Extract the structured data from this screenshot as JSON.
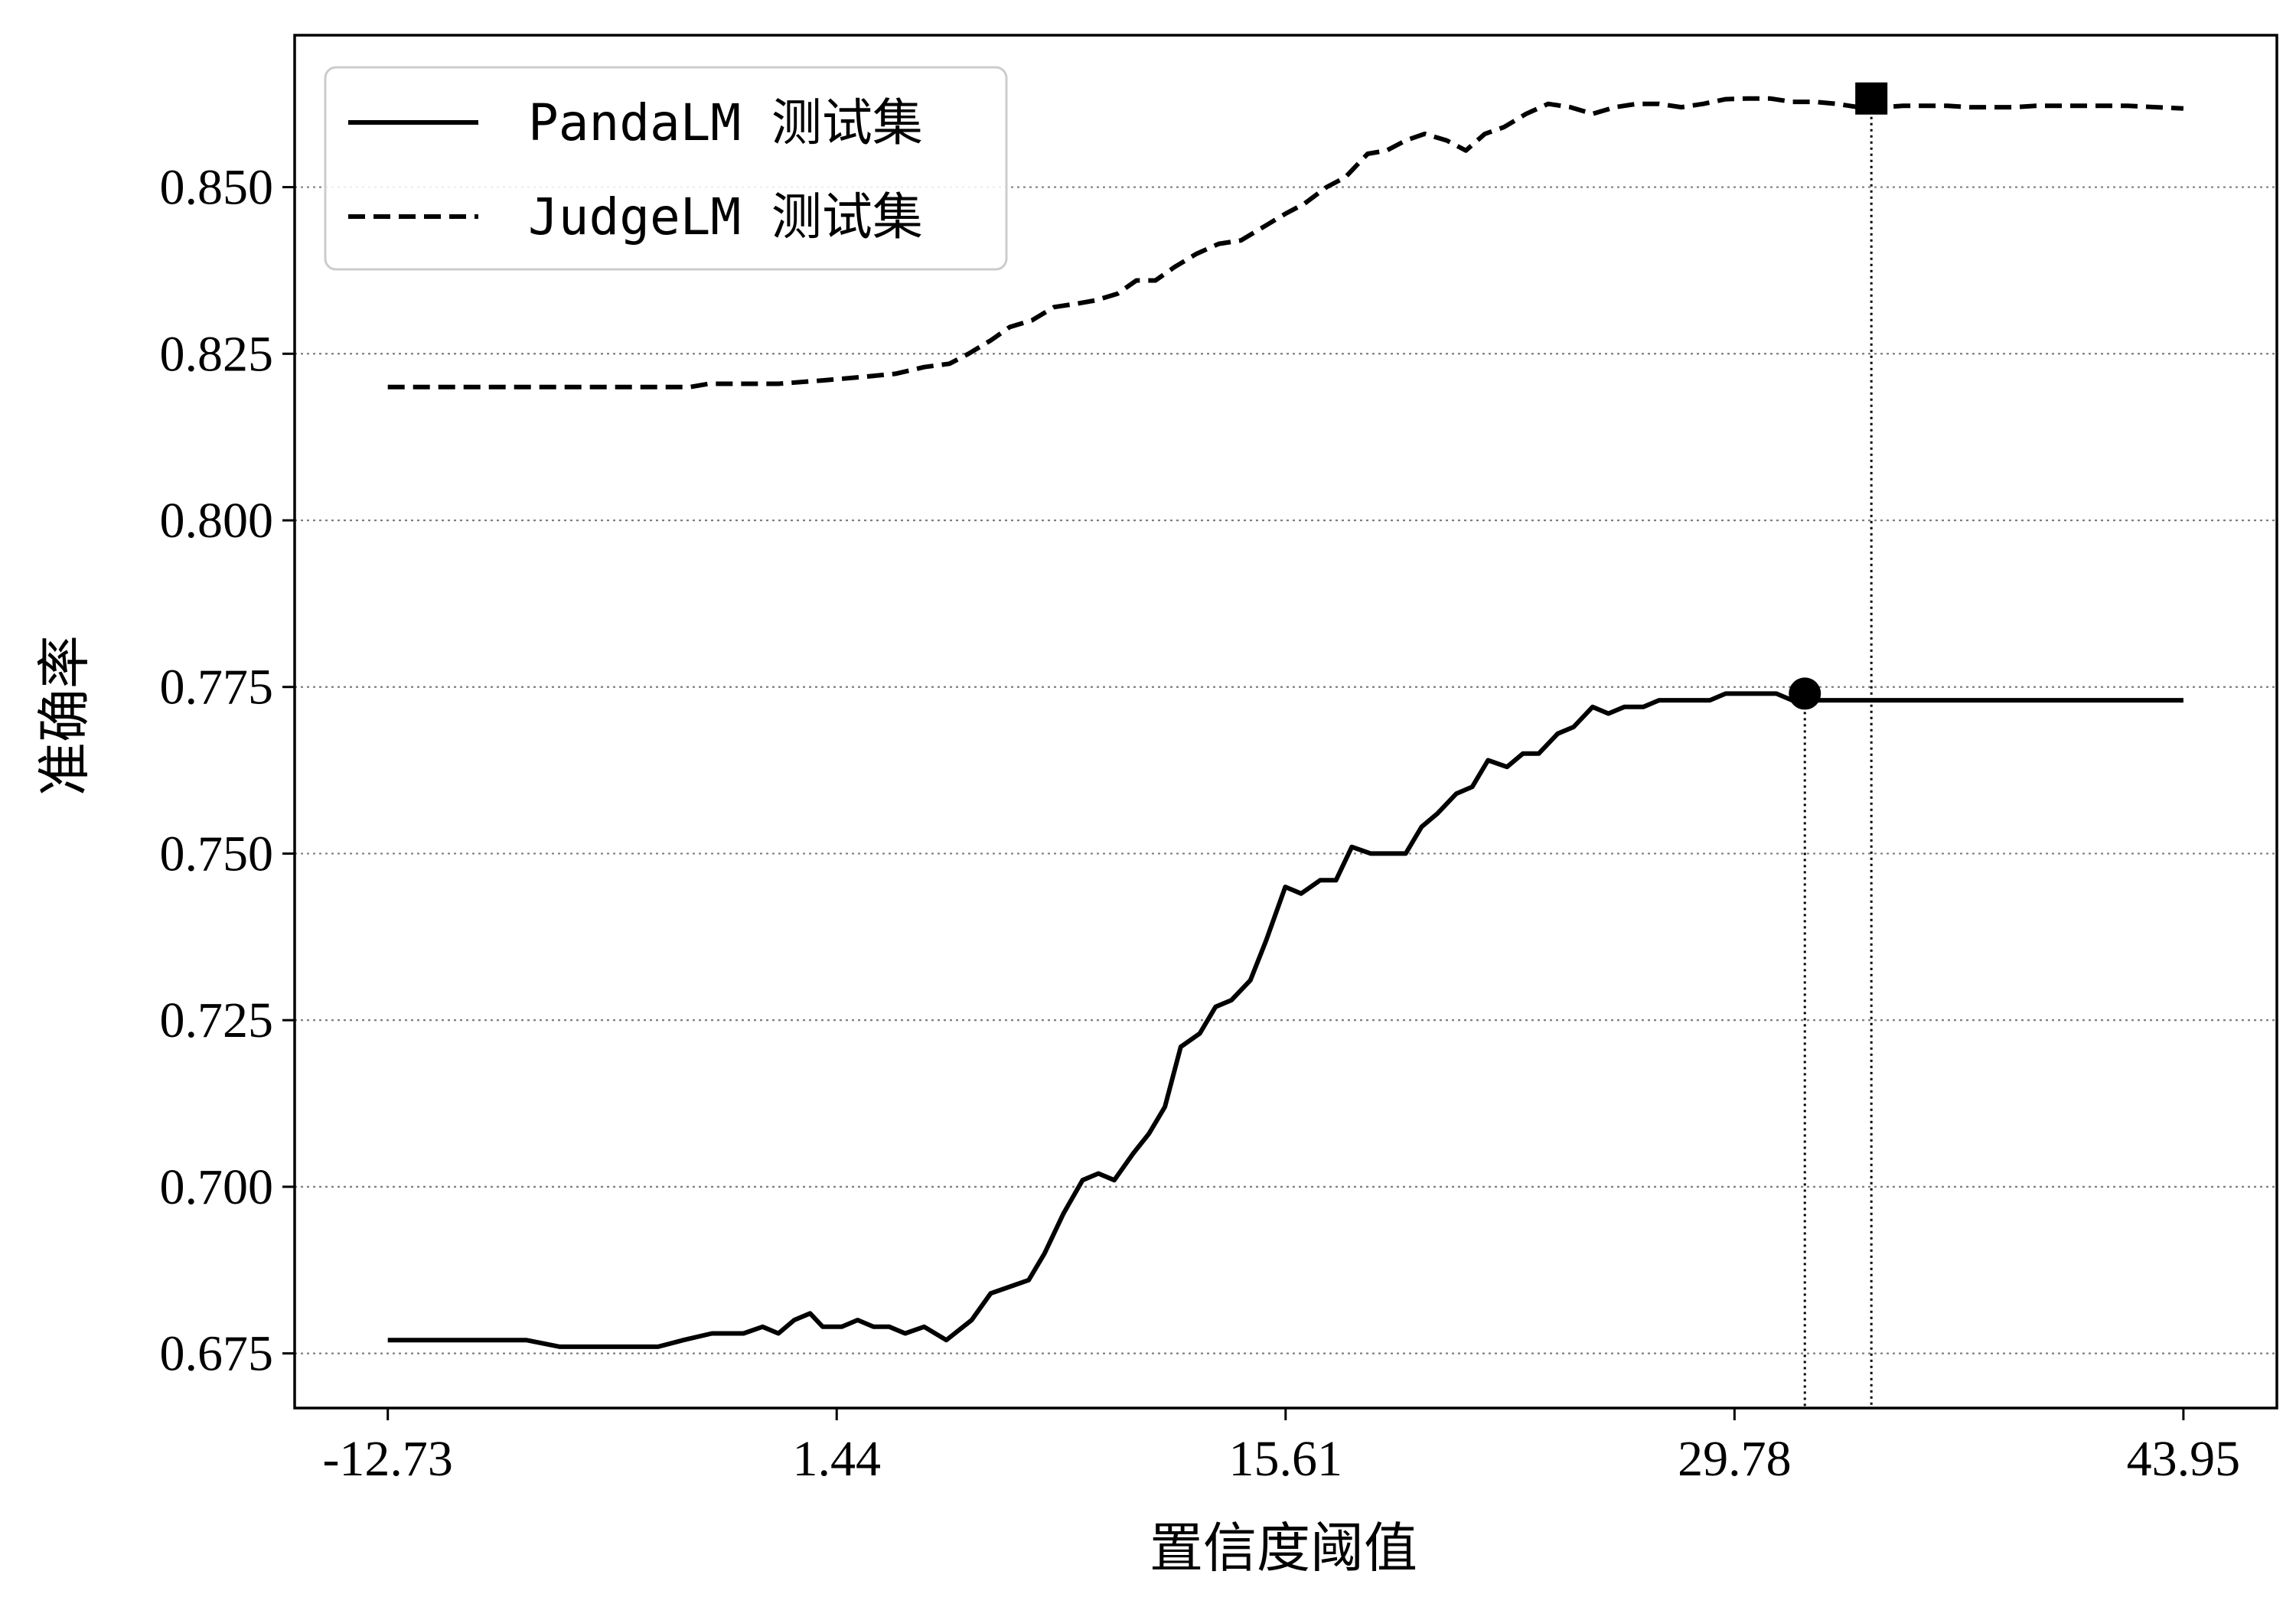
{
  "chart_data": {
    "type": "line",
    "xlabel": "置信度阈值",
    "ylabel": "准确率",
    "xlim": [
      -15.67,
      46.9
    ],
    "ylim": [
      0.6668,
      0.8728
    ],
    "xticks": [
      -12.73,
      1.44,
      15.61,
      29.78,
      43.95
    ],
    "xtick_labels": [
      "-12.73",
      "1.44",
      "15.61",
      "29.78",
      "43.95"
    ],
    "yticks": [
      0.675,
      0.7,
      0.725,
      0.75,
      0.775,
      0.8,
      0.825,
      0.85
    ],
    "ytick_labels": [
      "0.675",
      "0.700",
      "0.725",
      "0.750",
      "0.775",
      "0.800",
      "0.825",
      "0.850"
    ],
    "grid": "horizontal-dotted",
    "legend": "top-left",
    "series": [
      {
        "name": "PandaLM 测试集",
        "style": "solid",
        "color": "#000000",
        "marker_point": {
          "x": 32.0,
          "y": 0.774,
          "marker": "circle"
        },
        "x": [
          -12.73,
          -8.36,
          -7.3,
          -4.2,
          -3.4,
          -2.5,
          -1.5,
          -0.9,
          -0.4,
          0.1,
          0.6,
          1.0,
          1.6,
          2.1,
          2.6,
          3.1,
          3.6,
          4.2,
          4.9,
          5.7,
          6.3,
          6.9,
          7.5,
          8.0,
          8.6,
          9.2,
          9.7,
          10.2,
          10.8,
          11.3,
          11.8,
          12.3,
          12.9,
          13.4,
          13.9,
          14.5,
          15.0,
          15.6,
          16.1,
          16.7,
          17.2,
          17.7,
          18.3,
          18.8,
          19.4,
          19.9,
          20.4,
          21.0,
          21.5,
          22.0,
          22.6,
          23.1,
          23.6,
          24.2,
          24.7,
          25.3,
          25.8,
          26.3,
          26.9,
          27.4,
          27.9,
          28.5,
          29.0,
          29.5,
          30.0,
          30.6,
          31.1,
          31.6,
          32.2,
          32.7,
          33.3,
          33.8,
          43.95
        ],
        "y": [
          0.677,
          0.677,
          0.676,
          0.676,
          0.677,
          0.678,
          0.678,
          0.679,
          0.678,
          0.68,
          0.681,
          0.679,
          0.679,
          0.68,
          0.679,
          0.679,
          0.678,
          0.679,
          0.677,
          0.68,
          0.684,
          0.685,
          0.686,
          0.69,
          0.696,
          0.701,
          0.702,
          0.701,
          0.705,
          0.708,
          0.712,
          0.721,
          0.723,
          0.727,
          0.728,
          0.731,
          0.737,
          0.745,
          0.744,
          0.746,
          0.746,
          0.751,
          0.75,
          0.75,
          0.75,
          0.754,
          0.756,
          0.759,
          0.76,
          0.764,
          0.763,
          0.765,
          0.765,
          0.768,
          0.769,
          0.772,
          0.771,
          0.772,
          0.772,
          0.773,
          0.773,
          0.773,
          0.773,
          0.774,
          0.774,
          0.774,
          0.774,
          0.773,
          0.773,
          0.773,
          0.773,
          0.773,
          0.773
        ]
      },
      {
        "name": "JudgeLM 测试集",
        "style": "dashed",
        "color": "#000000",
        "marker_point": {
          "x": 34.1,
          "y": 0.8633,
          "marker": "square"
        },
        "x": [
          -12.73,
          -3.2,
          -2.6,
          -0.4,
          1.0,
          2.2,
          3.3,
          4.2,
          5.0,
          5.6,
          6.3,
          6.9,
          7.6,
          8.3,
          9.0,
          9.6,
          10.3,
          10.9,
          11.5,
          12.1,
          12.8,
          13.5,
          14.2,
          14.9,
          15.6,
          16.2,
          16.9,
          17.5,
          18.2,
          18.8,
          19.4,
          20.0,
          20.7,
          21.3,
          21.9,
          22.5,
          23.2,
          23.9,
          24.6,
          25.3,
          26.0,
          26.7,
          27.4,
          28.1,
          28.8,
          29.5,
          30.2,
          30.9,
          31.6,
          32.3,
          33.0,
          33.7,
          34.4,
          35.1,
          35.8,
          36.5,
          37.2,
          37.9,
          38.6,
          39.3,
          40.0,
          40.7,
          41.4,
          42.2,
          43.95
        ],
        "y": [
          0.82,
          0.82,
          0.8205,
          0.8205,
          0.821,
          0.8215,
          0.822,
          0.823,
          0.8235,
          0.825,
          0.827,
          0.829,
          0.83,
          0.832,
          0.8325,
          0.833,
          0.834,
          0.836,
          0.836,
          0.838,
          0.84,
          0.8415,
          0.842,
          0.844,
          0.846,
          0.8475,
          0.85,
          0.8515,
          0.855,
          0.8555,
          0.857,
          0.858,
          0.857,
          0.8555,
          0.858,
          0.859,
          0.861,
          0.8625,
          0.862,
          0.861,
          0.862,
          0.8625,
          0.8625,
          0.862,
          0.8625,
          0.8632,
          0.8633,
          0.8633,
          0.8628,
          0.8628,
          0.8625,
          0.862,
          0.862,
          0.8622,
          0.8622,
          0.8622,
          0.862,
          0.862,
          0.862,
          0.8622,
          0.8622,
          0.8622,
          0.8622,
          0.8622,
          0.8618
        ]
      }
    ]
  }
}
